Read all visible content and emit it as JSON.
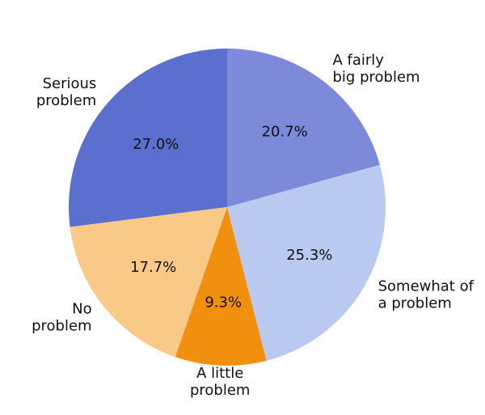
{
  "chart_data": {
    "type": "pie",
    "title": "",
    "start_angle_deg": 90,
    "direction": "counterclockwise",
    "slices": [
      {
        "label": "Serious\nproblem",
        "value": 27.0,
        "pct_label": "27.0%",
        "color": "#5b6fce"
      },
      {
        "label": "No\nproblem",
        "value": 17.7,
        "pct_label": "17.7%",
        "color": "#f8c987"
      },
      {
        "label": "A little\nproblem",
        "value": 9.3,
        "pct_label": "9.3%",
        "color": "#f0900e"
      },
      {
        "label": "Somewhat of\na problem",
        "value": 25.3,
        "pct_label": "25.3%",
        "color": "#b9c9ef"
      },
      {
        "label": "A fairly\nbig problem",
        "value": 20.7,
        "pct_label": "20.7%",
        "color": "#7c8ad9"
      }
    ]
  }
}
